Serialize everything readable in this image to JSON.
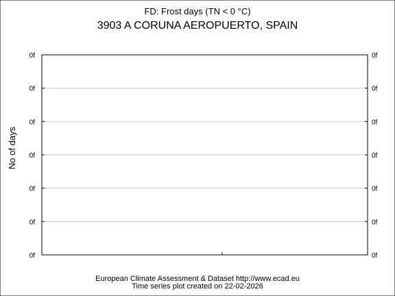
{
  "chart_data": {
    "type": "line",
    "title": "FD: Frost days (TN < 0 °C)",
    "subtitle": "3903 A CORUNA AEROPUERTO, SPAIN",
    "xlabel": "",
    "ylabel": "No of days",
    "y_ticks": [
      "0f",
      "0f",
      "0f",
      "0f",
      "0f",
      "0f",
      "0f"
    ],
    "y_ticks_right": [
      "0f",
      "0f",
      "0f",
      "0f",
      "0f",
      "0f",
      "0f"
    ],
    "x_ticks": [],
    "series": [],
    "grid": true,
    "legend": "none"
  },
  "footer": {
    "line1": "European Climate Assessment & Dataset  http://www.ecad.eu",
    "line2": "Time series plot created on 22-02-2026"
  },
  "colors": {
    "background": "#ffffff",
    "axis": "#000000",
    "grid": "#c8c8c8"
  }
}
